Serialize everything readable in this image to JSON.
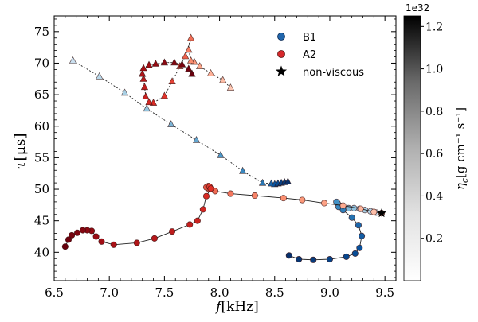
{
  "chart_data": {
    "type": "scatter",
    "xlabel_symbol": "f",
    "xlabel_unit": "[kHz]",
    "ylabel_symbol": "τ",
    "ylabel_unit": "[μs]",
    "xlim": [
      6.5,
      9.6
    ],
    "ylim": [
      35.5,
      77.5
    ],
    "xticks": [
      "6.5",
      "7.0",
      "7.5",
      "8.0",
      "8.5",
      "9.0",
      "9.5"
    ],
    "yticks": [
      "40",
      "45",
      "50",
      "55",
      "60",
      "65",
      "70",
      "75"
    ],
    "xtick_values": [
      6.5,
      7.0,
      7.5,
      8.0,
      8.5,
      9.0,
      9.5
    ],
    "ytick_values": [
      40,
      45,
      50,
      55,
      60,
      65,
      70,
      75
    ],
    "legend": {
      "placement": "top-right",
      "entries": [
        {
          "label": "B1",
          "marker": "circle",
          "color": "#2166ac"
        },
        {
          "label": "A2",
          "marker": "circle",
          "color": "#d6282b"
        },
        {
          "label": "non-viscous",
          "marker": "star",
          "color": "#000000"
        }
      ]
    },
    "non_viscous": [
      {
        "x": 9.47,
        "y": 46.2
      },
      {
        "x": 9.47,
        "y": 46.2
      }
    ],
    "series": [
      {
        "name": "B1 circles",
        "marker": "circle",
        "line": "solid",
        "color_scale": "Blues",
        "points": [
          [
            9.47,
            46.2
          ],
          [
            9.42,
            46.3
          ],
          [
            9.37,
            46.5
          ],
          [
            9.32,
            46.7
          ],
          [
            9.27,
            46.9
          ],
          [
            9.22,
            47.0
          ],
          [
            9.17,
            47.0
          ],
          [
            9.12,
            47.1
          ],
          [
            9.09,
            47.4
          ],
          [
            9.07,
            47.8
          ],
          [
            9.06,
            48.0
          ],
          [
            9.08,
            47.2
          ],
          [
            9.12,
            46.7
          ],
          [
            9.2,
            45.5
          ],
          [
            9.26,
            44.3
          ],
          [
            9.29,
            42.6
          ],
          [
            9.27,
            40.7
          ],
          [
            9.23,
            39.8
          ],
          [
            9.15,
            39.3
          ],
          [
            9.0,
            38.9
          ],
          [
            8.85,
            38.8
          ],
          [
            8.72,
            38.9
          ],
          [
            8.63,
            39.5
          ]
        ]
      },
      {
        "name": "B1 triangles",
        "marker": "triangle",
        "line": "dotted",
        "color_scale": "Blues",
        "points": [
          [
            6.67,
            70.4
          ],
          [
            6.91,
            67.9
          ],
          [
            7.14,
            65.3
          ],
          [
            7.34,
            62.8
          ],
          [
            7.56,
            60.3
          ],
          [
            7.79,
            57.8
          ],
          [
            8.01,
            55.4
          ],
          [
            8.21,
            52.9
          ],
          [
            8.39,
            51.0
          ],
          [
            8.47,
            50.9
          ],
          [
            8.5,
            50.8
          ],
          [
            8.53,
            50.9
          ],
          [
            8.56,
            51.0
          ],
          [
            8.59,
            51.1
          ],
          [
            8.62,
            51.2
          ]
        ]
      },
      {
        "name": "A2 circles",
        "marker": "circle",
        "line": "solid",
        "color_scale": "Reds",
        "points": [
          [
            9.47,
            46.2
          ],
          [
            9.4,
            46.4
          ],
          [
            9.28,
            46.9
          ],
          [
            9.12,
            47.4
          ],
          [
            8.95,
            47.8
          ],
          [
            8.75,
            48.3
          ],
          [
            8.58,
            48.6
          ],
          [
            8.32,
            49.0
          ],
          [
            8.1,
            49.3
          ],
          [
            7.96,
            49.7
          ],
          [
            7.9,
            50.1
          ],
          [
            7.88,
            50.3
          ],
          [
            7.9,
            50.5
          ],
          [
            7.91,
            50.4
          ],
          [
            7.92,
            50.1
          ],
          [
            7.88,
            48.9
          ],
          [
            7.85,
            46.8
          ],
          [
            7.8,
            45.0
          ],
          [
            7.73,
            44.4
          ],
          [
            7.57,
            43.3
          ],
          [
            7.41,
            42.2
          ],
          [
            7.25,
            41.5
          ],
          [
            7.04,
            41.2
          ],
          [
            6.93,
            41.7
          ],
          [
            6.88,
            42.5
          ],
          [
            6.84,
            43.4
          ],
          [
            6.8,
            43.5
          ],
          [
            6.76,
            43.5
          ],
          [
            6.71,
            43.1
          ],
          [
            6.66,
            42.7
          ],
          [
            6.63,
            42.0
          ],
          [
            6.6,
            40.9
          ]
        ]
      },
      {
        "name": "A2 triangles",
        "marker": "triangle",
        "line": "dotted",
        "color_scale": "Reds",
        "points": [
          [
            8.1,
            66.1
          ],
          [
            8.03,
            67.3
          ],
          [
            7.92,
            68.4
          ],
          [
            7.82,
            69.5
          ],
          [
            7.77,
            70.2
          ],
          [
            7.74,
            70.4
          ],
          [
            7.72,
            72.1
          ],
          [
            7.74,
            74.0
          ],
          [
            7.69,
            71.1
          ],
          [
            7.64,
            69.5
          ],
          [
            7.57,
            67.1
          ],
          [
            7.5,
            64.8
          ],
          [
            7.4,
            63.7
          ],
          [
            7.36,
            63.8
          ],
          [
            7.33,
            64.7
          ],
          [
            7.32,
            66.2
          ],
          [
            7.31,
            67.5
          ],
          [
            7.3,
            68.3
          ],
          [
            7.31,
            69.2
          ],
          [
            7.36,
            69.7
          ],
          [
            7.42,
            69.9
          ],
          [
            7.5,
            70.1
          ],
          [
            7.59,
            70.1
          ],
          [
            7.66,
            69.8
          ],
          [
            7.72,
            69.1
          ],
          [
            7.75,
            68.3
          ]
        ]
      }
    ],
    "colorbar": {
      "label_symbol": "η",
      "label_subscript": "c",
      "label_unit": "[g cm⁻¹ s⁻¹]",
      "offset_text": "1e32",
      "range": [
        0,
        1.25
      ],
      "tick_values": [
        0.2,
        0.4,
        0.6,
        0.8,
        1.0,
        1.2
      ],
      "ticks": [
        "0.2",
        "0.4",
        "0.6",
        "0.8",
        "1.0",
        "1.2"
      ],
      "colormap": "Greys"
    }
  }
}
